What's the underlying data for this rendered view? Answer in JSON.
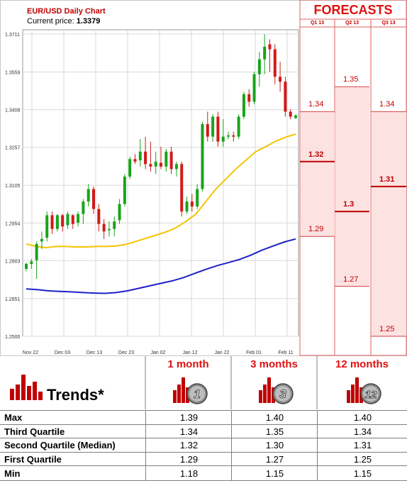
{
  "header": {
    "title": "EUR/USD Daily Chart",
    "price_label": "Current price:",
    "price_value": "1.3379"
  },
  "forecasts": {
    "title": "FORECASTS",
    "quarters": [
      "Q1 13",
      "Q2 13",
      "Q3 13"
    ],
    "columns": [
      {
        "quarter": "Q1 13",
        "max": 1.34,
        "median": 1.32,
        "min": 1.29,
        "labels": [
          "1.34",
          "1.32",
          "1.29"
        ]
      },
      {
        "quarter": "Q2 13",
        "max": 1.35,
        "median": 1.3,
        "min": 1.27,
        "labels": [
          "1.35",
          "1.3",
          "1.27"
        ]
      },
      {
        "quarter": "Q3 13",
        "max": 1.34,
        "median": 1.31,
        "min": 1.25,
        "labels": [
          "1.34",
          "1.31",
          "1.25"
        ]
      }
    ]
  },
  "chart_data": {
    "type": "candlestick",
    "title": "EUR/USD Daily Chart",
    "ylim": [
      1.25,
      1.3711
    ],
    "y_ticks": [
      "1.3711",
      "1.3559",
      "1.3408",
      "1.3257",
      "1.3105",
      "1.2954",
      "1.2803",
      "1.2651",
      "1.2500"
    ],
    "x_ticks": [
      "Nov 22",
      "Dec 03",
      "Dec 13",
      "Dec 23",
      "Jan 02",
      "Jan 12",
      "Jan 22",
      "Feb 01",
      "Feb 11"
    ],
    "grid": true,
    "candles": [
      [
        1.277,
        1.2795,
        1.276,
        1.279
      ],
      [
        1.279,
        1.281,
        1.277,
        1.28
      ],
      [
        1.2805,
        1.288,
        1.273,
        1.287
      ],
      [
        1.288,
        1.292,
        1.285,
        1.289
      ],
      [
        1.2895,
        1.3,
        1.288,
        1.2985
      ],
      [
        1.2985,
        1.3,
        1.291,
        1.293
      ],
      [
        1.293,
        1.299,
        1.292,
        1.2985
      ],
      [
        1.2985,
        1.299,
        1.292,
        1.294
      ],
      [
        1.2945,
        1.3,
        1.293,
        1.299
      ],
      [
        1.2985,
        1.299,
        1.293,
        1.295
      ],
      [
        1.2955,
        1.3,
        1.294,
        1.299
      ],
      [
        1.299,
        1.305,
        1.295,
        1.304
      ],
      [
        1.304,
        1.311,
        1.302,
        1.309
      ],
      [
        1.309,
        1.31,
        1.299,
        1.301
      ],
      [
        1.301,
        1.303,
        1.292,
        1.295
      ],
      [
        1.295,
        1.297,
        1.289,
        1.292
      ],
      [
        1.2925,
        1.296,
        1.29,
        1.293
      ],
      [
        1.293,
        1.298,
        1.29,
        1.296
      ],
      [
        1.2965,
        1.305,
        1.295,
        1.303
      ],
      [
        1.303,
        1.315,
        1.302,
        1.314
      ],
      [
        1.314,
        1.322,
        1.313,
        1.321
      ],
      [
        1.321,
        1.323,
        1.319,
        1.32
      ],
      [
        1.3205,
        1.329,
        1.318,
        1.324
      ],
      [
        1.324,
        1.33,
        1.317,
        1.319
      ],
      [
        1.319,
        1.328,
        1.316,
        1.318
      ],
      [
        1.318,
        1.324,
        1.315,
        1.32
      ],
      [
        1.3195,
        1.326,
        1.317,
        1.318
      ],
      [
        1.318,
        1.325,
        1.316,
        1.324
      ],
      [
        1.324,
        1.326,
        1.315,
        1.317
      ],
      [
        1.317,
        1.32,
        1.314,
        1.319
      ],
      [
        1.319,
        1.32,
        1.298,
        1.3
      ],
      [
        1.3,
        1.306,
        1.299,
        1.304
      ],
      [
        1.304,
        1.307,
        1.3,
        1.302
      ],
      [
        1.302,
        1.311,
        1.301,
        1.309
      ],
      [
        1.309,
        1.336,
        1.308,
        1.335
      ],
      [
        1.335,
        1.34,
        1.328,
        1.33
      ],
      [
        1.33,
        1.339,
        1.328,
        1.338
      ],
      [
        1.338,
        1.34,
        1.326,
        1.328
      ],
      [
        1.328,
        1.337,
        1.326,
        1.33
      ],
      [
        1.33,
        1.332,
        1.329,
        1.3305
      ],
      [
        1.3305,
        1.332,
        1.328,
        1.33
      ],
      [
        1.33,
        1.339,
        1.329,
        1.338
      ],
      [
        1.338,
        1.348,
        1.337,
        1.347
      ],
      [
        1.347,
        1.349,
        1.342,
        1.344
      ],
      [
        1.344,
        1.356,
        1.343,
        1.355
      ],
      [
        1.355,
        1.364,
        1.35,
        1.361
      ],
      [
        1.361,
        1.371,
        1.355,
        1.366
      ],
      [
        1.367,
        1.369,
        1.356,
        1.365
      ],
      [
        1.365,
        1.367,
        1.351,
        1.354
      ],
      [
        1.354,
        1.36,
        1.348,
        1.352
      ],
      [
        1.352,
        1.354,
        1.338,
        1.34
      ],
      [
        1.34,
        1.341,
        1.337,
        1.338
      ],
      [
        1.3375,
        1.339,
        1.337,
        1.3385
      ]
    ],
    "series": [
      {
        "name": "",
        "color": "#f5c400",
        "values": [
          1.287,
          1.286,
          1.2855,
          1.286,
          1.286,
          1.2858,
          1.2858,
          1.286,
          1.286,
          1.2862,
          1.2868,
          1.288,
          1.2893,
          1.2905,
          1.2918,
          1.2935,
          1.296,
          1.299,
          1.304,
          1.309,
          1.313,
          1.317,
          1.3205,
          1.324,
          1.326,
          1.3282,
          1.3298,
          1.331
        ]
      },
      {
        "name": "",
        "color": "#2020c8",
        "values": [
          1.269,
          1.2687,
          1.2682,
          1.268,
          1.2678,
          1.2675,
          1.2673,
          1.2672,
          1.2675,
          1.2682,
          1.2692,
          1.2702,
          1.2712,
          1.2722,
          1.2735,
          1.2752,
          1.2768,
          1.2783,
          1.2795,
          1.2808,
          1.2825,
          1.2845,
          1.2862,
          1.2878,
          1.289
        ]
      }
    ]
  },
  "trends": {
    "title": "Trends*",
    "columns": [
      {
        "title": "1 month",
        "badge": "1"
      },
      {
        "title": "3 months",
        "badge": "3"
      },
      {
        "title": "12 months",
        "badge": "12"
      }
    ],
    "rows": [
      {
        "label": "Max",
        "values": [
          "1.39",
          "1.40",
          "1.40"
        ]
      },
      {
        "label": "Third Quartile",
        "values": [
          "1.34",
          "1.35",
          "1.34"
        ]
      },
      {
        "label": "Second Quartile (Median)",
        "values": [
          "1.32",
          "1.30",
          "1.31"
        ]
      },
      {
        "label": "First Quartile",
        "values": [
          "1.29",
          "1.27",
          "1.25"
        ]
      },
      {
        "label": "Min",
        "values": [
          "1.18",
          "1.15",
          "1.15"
        ]
      }
    ]
  }
}
